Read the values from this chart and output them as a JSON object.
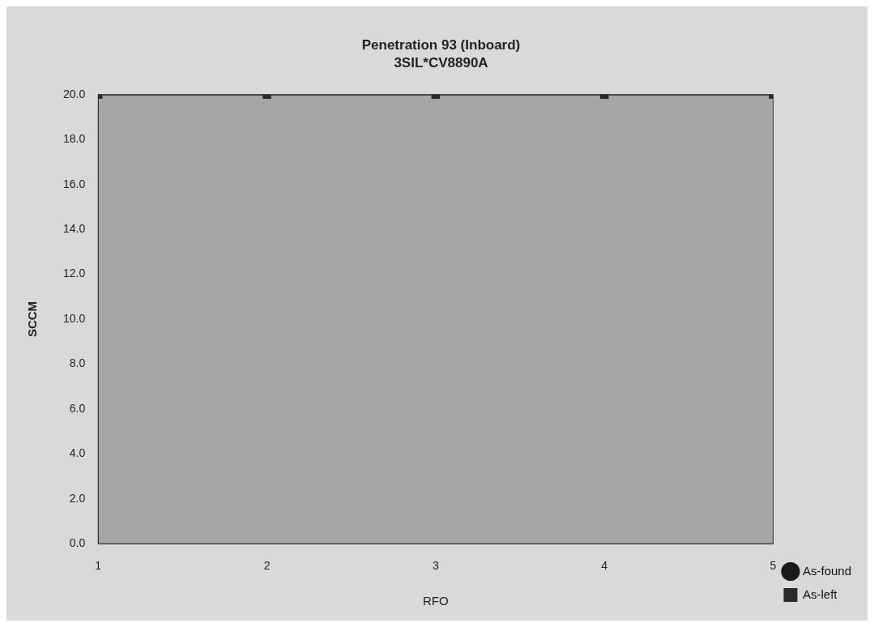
{
  "chart_data": {
    "type": "line",
    "title": "Penetration 93 (Inboard)",
    "subtitle": "3SIL*CV8890A",
    "xlabel": "RFO",
    "ylabel": "SCCM",
    "x": [
      1,
      2,
      3,
      4,
      5
    ],
    "xlim": [
      1,
      5
    ],
    "xticks": [
      1,
      2,
      3,
      4,
      5
    ],
    "ylim": [
      0,
      20
    ],
    "yticks": [
      {
        "value": 0,
        "label": "0.0"
      },
      {
        "value": 2,
        "label": "2.0"
      },
      {
        "value": 4,
        "label": "4.0"
      },
      {
        "value": 6,
        "label": "6.0"
      },
      {
        "value": 8,
        "label": "8.0"
      },
      {
        "value": 10,
        "label": "10.0"
      },
      {
        "value": 12,
        "label": "12.0"
      },
      {
        "value": 14,
        "label": "14.0"
      },
      {
        "value": 16,
        "label": "16.0"
      },
      {
        "value": 18,
        "label": "18.0"
      },
      {
        "value": 20,
        "label": "20.0"
      }
    ],
    "series": [
      {
        "name": "As-found",
        "color": "#1a1a1a",
        "marker": "circle",
        "values": [
          null,
          null,
          null,
          null,
          null
        ]
      },
      {
        "name": "As-left",
        "color": "#2a2a2a",
        "marker": "square",
        "values": [
          20,
          20,
          20,
          20,
          20
        ]
      }
    ],
    "legend": "bottom right",
    "grid": false
  }
}
